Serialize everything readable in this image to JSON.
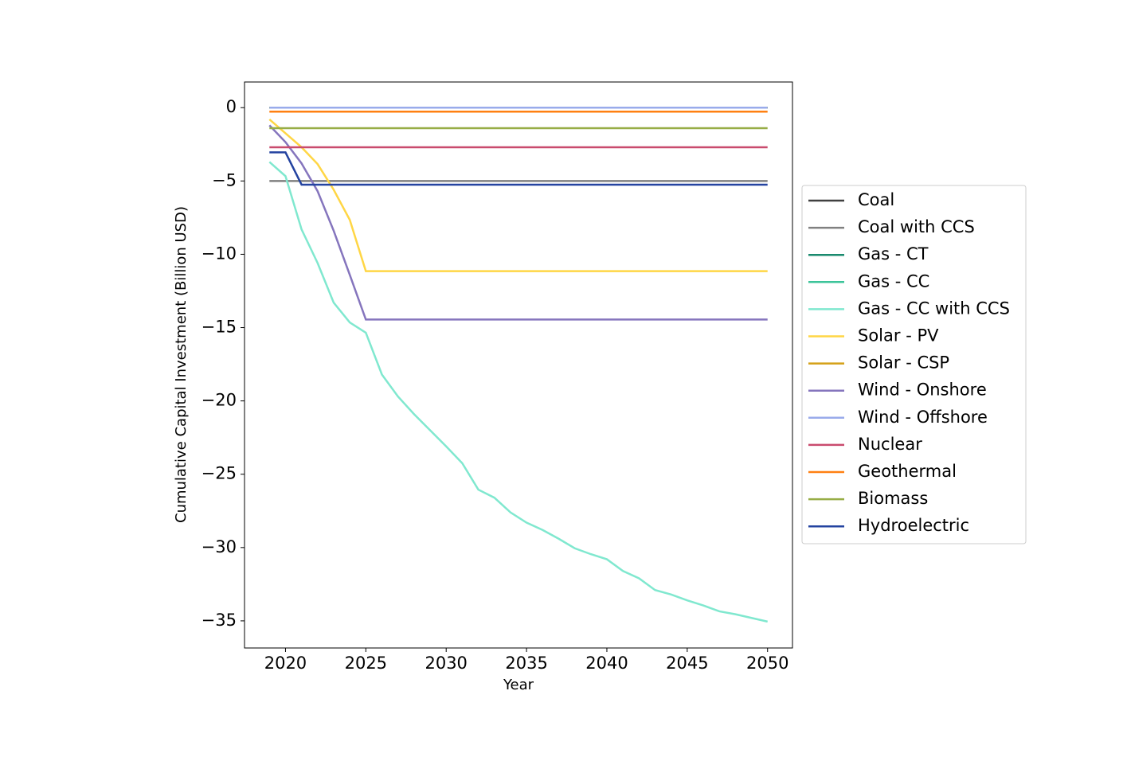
{
  "chart_data": {
    "type": "line",
    "xlabel": "Year",
    "ylabel": "Cumulative Capital Investment (Billion USD)",
    "x": [
      2019,
      2020,
      2021,
      2022,
      2023,
      2024,
      2025,
      2026,
      2027,
      2028,
      2029,
      2030,
      2031,
      2032,
      2033,
      2034,
      2035,
      2036,
      2037,
      2038,
      2039,
      2040,
      2041,
      2042,
      2043,
      2044,
      2045,
      2046,
      2047,
      2048,
      2049,
      2050
    ],
    "xlim": [
      2017.45,
      2051.55
    ],
    "ylim": [
      -36.85,
      1.75
    ],
    "xticks": [
      2020,
      2025,
      2030,
      2035,
      2040,
      2045,
      2050
    ],
    "yticks": [
      0,
      {
        "value": -5,
        "label": "−5"
      },
      {
        "value": -10,
        "label": "−10"
      },
      {
        "value": -15,
        "label": "−15"
      },
      {
        "value": -20,
        "label": "−20"
      },
      {
        "value": -25,
        "label": "−25"
      },
      {
        "value": -30,
        "label": "−30"
      },
      {
        "value": -35,
        "label": "−35"
      }
    ],
    "legend": "outside right",
    "series": [
      {
        "name": "Coal",
        "color": "#404040",
        "values": [
          0,
          0,
          0,
          0,
          0,
          0,
          0,
          0,
          0,
          0,
          0,
          0,
          0,
          0,
          0,
          0,
          0,
          0,
          0,
          0,
          0,
          0,
          0,
          0,
          0,
          0,
          0,
          0,
          0,
          0,
          0,
          0
        ]
      },
      {
        "name": "Coal with CCS",
        "color": "#808080",
        "values": [
          -5,
          -5,
          -5,
          -5,
          -5,
          -5,
          -5,
          -5,
          -5,
          -5,
          -5,
          -5,
          -5,
          -5,
          -5,
          -5,
          -5,
          -5,
          -5,
          -5,
          -5,
          -5,
          -5,
          -5,
          -5,
          -5,
          -5,
          -5,
          -5,
          -5,
          -5,
          -5
        ]
      },
      {
        "name": "Gas - CT",
        "color": "#1a8a6e",
        "values": [
          0,
          0,
          0,
          0,
          0,
          0,
          0,
          0,
          0,
          0,
          0,
          0,
          0,
          0,
          0,
          0,
          0,
          0,
          0,
          0,
          0,
          0,
          0,
          0,
          0,
          0,
          0,
          0,
          0,
          0,
          0,
          0
        ]
      },
      {
        "name": "Gas - CC",
        "color": "#3cc49a",
        "values": [
          0,
          0,
          0,
          0,
          0,
          0,
          0,
          0,
          0,
          0,
          0,
          0,
          0,
          0,
          0,
          0,
          0,
          0,
          0,
          0,
          0,
          0,
          0,
          0,
          0,
          0,
          0,
          0,
          0,
          0,
          0,
          0
        ]
      },
      {
        "name": "Gas - CC with CCS",
        "color": "#80e8cf",
        "values": [
          -3.7,
          -4.67,
          -8.3,
          -10.6,
          -13.3,
          -14.65,
          -15.35,
          -18.2,
          -19.7,
          -20.9,
          -22.0,
          -23.1,
          -24.25,
          -26.05,
          -26.6,
          -27.6,
          -28.3,
          -28.8,
          -29.4,
          -30.05,
          -30.45,
          -30.8,
          -31.6,
          -32.1,
          -32.9,
          -33.2,
          -33.6,
          -33.95,
          -34.35,
          -34.55,
          -34.8,
          -35.05
        ]
      },
      {
        "name": "Solar - PV",
        "color": "#ffd645",
        "values": [
          -0.8,
          -1.75,
          -2.7,
          -3.85,
          -5.6,
          -7.65,
          -11.15,
          -11.15,
          -11.15,
          -11.15,
          -11.15,
          -11.15,
          -11.15,
          -11.15,
          -11.15,
          -11.15,
          -11.15,
          -11.15,
          -11.15,
          -11.15,
          -11.15,
          -11.15,
          -11.15,
          -11.15,
          -11.15,
          -11.15,
          -11.15,
          -11.15,
          -11.15,
          -11.15,
          -11.15,
          -11.15
        ]
      },
      {
        "name": "Solar - CSP",
        "color": "#d4a017",
        "values": [
          0,
          0,
          0,
          0,
          0,
          0,
          0,
          0,
          0,
          0,
          0,
          0,
          0,
          0,
          0,
          0,
          0,
          0,
          0,
          0,
          0,
          0,
          0,
          0,
          0,
          0,
          0,
          0,
          0,
          0,
          0,
          0
        ]
      },
      {
        "name": "Wind - Onshore",
        "color": "#8575bd",
        "values": [
          -1.2,
          -2.35,
          -3.8,
          -5.7,
          -8.4,
          -11.4,
          -14.45,
          -14.45,
          -14.45,
          -14.45,
          -14.45,
          -14.45,
          -14.45,
          -14.45,
          -14.45,
          -14.45,
          -14.45,
          -14.45,
          -14.45,
          -14.45,
          -14.45,
          -14.45,
          -14.45,
          -14.45,
          -14.45,
          -14.45,
          -14.45,
          -14.45,
          -14.45,
          -14.45,
          -14.45,
          -14.45
        ]
      },
      {
        "name": "Wind - Offshore",
        "color": "#99abeb",
        "values": [
          0,
          0,
          0,
          0,
          0,
          0,
          0,
          0,
          0,
          0,
          0,
          0,
          0,
          0,
          0,
          0,
          0,
          0,
          0,
          0,
          0,
          0,
          0,
          0,
          0,
          0,
          0,
          0,
          0,
          0,
          0,
          0
        ]
      },
      {
        "name": "Nuclear",
        "color": "#c94b6e",
        "values": [
          -2.7,
          -2.7,
          -2.7,
          -2.7,
          -2.7,
          -2.7,
          -2.7,
          -2.7,
          -2.7,
          -2.7,
          -2.7,
          -2.7,
          -2.7,
          -2.7,
          -2.7,
          -2.7,
          -2.7,
          -2.7,
          -2.7,
          -2.7,
          -2.7,
          -2.7,
          -2.7,
          -2.7,
          -2.7,
          -2.7,
          -2.7,
          -2.7,
          -2.7,
          -2.7,
          -2.7,
          -2.7
        ]
      },
      {
        "name": "Geothermal",
        "color": "#ff8012",
        "values": [
          -0.27,
          -0.27,
          -0.27,
          -0.27,
          -0.27,
          -0.27,
          -0.27,
          -0.27,
          -0.27,
          -0.27,
          -0.27,
          -0.27,
          -0.27,
          -0.27,
          -0.27,
          -0.27,
          -0.27,
          -0.27,
          -0.27,
          -0.27,
          -0.27,
          -0.27,
          -0.27,
          -0.27,
          -0.27,
          -0.27,
          -0.27,
          -0.27,
          -0.27,
          -0.27,
          -0.27,
          -0.27
        ]
      },
      {
        "name": "Biomass",
        "color": "#97ad46",
        "values": [
          -1.4,
          -1.4,
          -1.4,
          -1.4,
          -1.4,
          -1.4,
          -1.4,
          -1.4,
          -1.4,
          -1.4,
          -1.4,
          -1.4,
          -1.4,
          -1.4,
          -1.4,
          -1.4,
          -1.4,
          -1.4,
          -1.4,
          -1.4,
          -1.4,
          -1.4,
          -1.4,
          -1.4,
          -1.4,
          -1.4,
          -1.4,
          -1.4,
          -1.4,
          -1.4,
          -1.4,
          -1.4
        ]
      },
      {
        "name": "Hydroelectric",
        "color": "#2443a0",
        "values": [
          -3.05,
          -3.05,
          -5.25,
          -5.25,
          -5.25,
          -5.25,
          -5.25,
          -5.25,
          -5.25,
          -5.25,
          -5.25,
          -5.25,
          -5.25,
          -5.25,
          -5.25,
          -5.25,
          -5.25,
          -5.25,
          -5.25,
          -5.25,
          -5.25,
          -5.25,
          -5.25,
          -5.25,
          -5.25,
          -5.25,
          -5.25,
          -5.25,
          -5.25,
          -5.25,
          -5.25,
          -5.25
        ]
      }
    ]
  }
}
